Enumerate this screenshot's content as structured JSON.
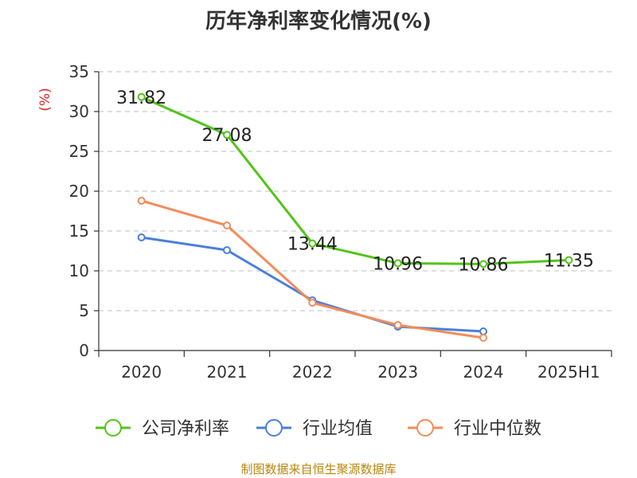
{
  "chart_data": {
    "type": "line",
    "title": "历年净利率变化情况(%)",
    "ylabel": "(%)",
    "xlabel": "",
    "categories": [
      "2020",
      "2021",
      "2022",
      "2023",
      "2024",
      "2025H1"
    ],
    "ylim": [
      0,
      35
    ],
    "yticks": [
      0,
      5,
      10,
      15,
      20,
      25,
      30,
      35
    ],
    "grid": true,
    "legend_position": "bottom",
    "series": [
      {
        "name": "公司净利率",
        "color": "#52c41a",
        "values": [
          31.82,
          27.08,
          13.44,
          10.96,
          10.86,
          11.35
        ],
        "labels": [
          "31.82",
          "27.08",
          "13.44",
          "10.96",
          "10.86",
          "11.35"
        ]
      },
      {
        "name": "行业均值",
        "color": "#4a7fdb",
        "values": [
          14.2,
          12.6,
          6.3,
          3.0,
          2.4,
          null
        ]
      },
      {
        "name": "行业中位数",
        "color": "#f28c5a",
        "values": [
          18.8,
          15.7,
          6.0,
          3.2,
          1.6,
          null
        ]
      }
    ]
  },
  "source_note": "制图数据来自恒生聚源数据库"
}
